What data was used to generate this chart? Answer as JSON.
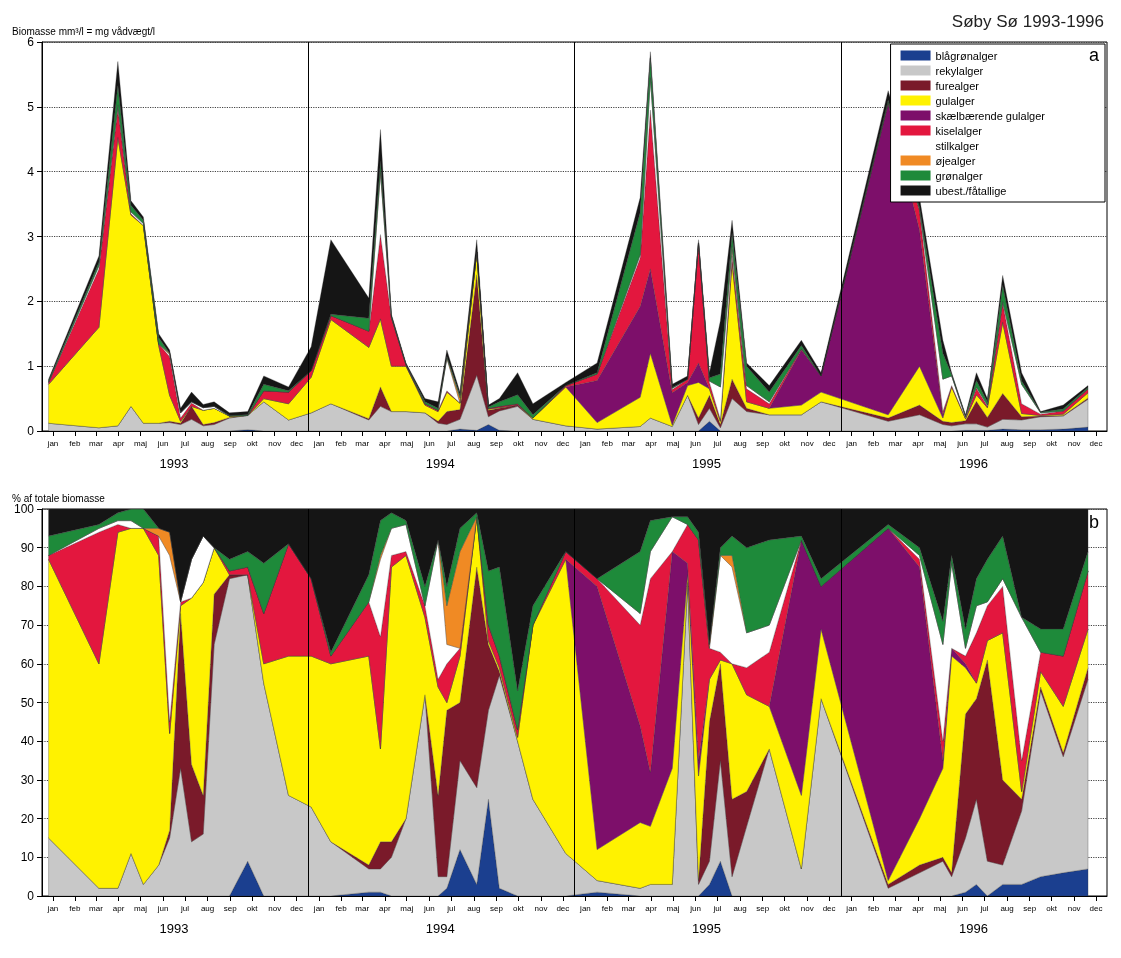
{
  "chart_data": [
    {
      "type": "area",
      "title": "Søby Sø 1993-1996",
      "ylabel": "Biomasse mm³/l = mg vådvægt/l",
      "annotations": [
        "a"
      ],
      "stacked": true,
      "legend": "top right",
      "grid": "y",
      "x": [
        "1993-01-10",
        "1993-03-20",
        "1993-04-15",
        "1993-05-03",
        "1993-05-20",
        "1993-06-10",
        "1993-06-25",
        "1993-07-10",
        "1993-07-25",
        "1993-08-10",
        "1993-08-25",
        "1993-09-15",
        "1993-10-10",
        "1993-11-01",
        "1993-12-05",
        "1994-01-05",
        "1994-02-01",
        "1994-03-25",
        "1994-04-10",
        "1994-04-25",
        "1994-05-15",
        "1994-06-10",
        "1994-06-28",
        "1994-07-10",
        "1994-07-28",
        "1994-08-20",
        "1994-09-05",
        "1994-09-20",
        "1994-10-15",
        "1994-11-05",
        "1994-12-20",
        "1995-02-01",
        "1995-04-01",
        "1995-04-15",
        "1995-05-15",
        "1995-06-05",
        "1995-06-20",
        "1995-07-05",
        "1995-07-20",
        "1995-08-05",
        "1995-08-25",
        "1995-09-25",
        "1995-11-08",
        "1995-12-05",
        "1996-03-06",
        "1996-04-18",
        "1996-05-20",
        "1996-06-01",
        "1996-06-20",
        "1996-07-05",
        "1996-07-20",
        "1996-08-10",
        "1996-09-05",
        "1996-10-01",
        "1996-11-01",
        "1996-12-05"
      ],
      "xlim": [
        "1993-01-01",
        "1996-12-31"
      ],
      "xticks": [
        {
          "value": "1993-01-16",
          "label": "jan"
        },
        {
          "value": "1993-02-15",
          "label": "feb"
        },
        {
          "value": "1993-03-16",
          "label": "mar"
        },
        {
          "value": "1993-04-16",
          "label": "apr"
        },
        {
          "value": "1993-05-16",
          "label": "maj"
        },
        {
          "value": "1993-06-16",
          "label": "jun"
        },
        {
          "value": "1993-07-16",
          "label": "jul"
        },
        {
          "value": "1993-08-16",
          "label": "aug"
        },
        {
          "value": "1993-09-16",
          "label": "sep"
        },
        {
          "value": "1993-10-16",
          "label": "okt"
        },
        {
          "value": "1993-11-16",
          "label": "nov"
        },
        {
          "value": "1993-12-16",
          "label": "dec"
        },
        {
          "value": "1994-01-16",
          "label": "jan"
        },
        {
          "value": "1994-02-15",
          "label": "feb"
        },
        {
          "value": "1994-03-16",
          "label": "mar"
        },
        {
          "value": "1994-04-16",
          "label": "apr"
        },
        {
          "value": "1994-05-16",
          "label": "maj"
        },
        {
          "value": "1994-06-16",
          "label": "jun"
        },
        {
          "value": "1994-07-16",
          "label": "jul"
        },
        {
          "value": "1994-08-16",
          "label": "aug"
        },
        {
          "value": "1994-09-16",
          "label": "sep"
        },
        {
          "value": "1994-10-16",
          "label": "okt"
        },
        {
          "value": "1994-11-16",
          "label": "nov"
        },
        {
          "value": "1994-12-16",
          "label": "dec"
        },
        {
          "value": "1995-01-16",
          "label": "jan"
        },
        {
          "value": "1995-02-15",
          "label": "feb"
        },
        {
          "value": "1995-03-16",
          "label": "mar"
        },
        {
          "value": "1995-04-16",
          "label": "apr"
        },
        {
          "value": "1995-05-16",
          "label": "maj"
        },
        {
          "value": "1995-06-16",
          "label": "jun"
        },
        {
          "value": "1995-07-16",
          "label": "jul"
        },
        {
          "value": "1995-08-16",
          "label": "aug"
        },
        {
          "value": "1995-09-16",
          "label": "sep"
        },
        {
          "value": "1995-10-16",
          "label": "okt"
        },
        {
          "value": "1995-11-16",
          "label": "nov"
        },
        {
          "value": "1995-12-16",
          "label": "dec"
        },
        {
          "value": "1996-01-16",
          "label": "jan"
        },
        {
          "value": "1996-02-15",
          "label": "feb"
        },
        {
          "value": "1996-03-16",
          "label": "mar"
        },
        {
          "value": "1996-04-16",
          "label": "apr"
        },
        {
          "value": "1996-05-16",
          "label": "maj"
        },
        {
          "value": "1996-06-16",
          "label": "jun"
        },
        {
          "value": "1996-07-16",
          "label": "jul"
        },
        {
          "value": "1996-08-16",
          "label": "aug"
        },
        {
          "value": "1996-09-16",
          "label": "sep"
        },
        {
          "value": "1996-10-16",
          "label": "okt"
        },
        {
          "value": "1996-11-16",
          "label": "nov"
        },
        {
          "value": "1996-12-16",
          "label": "dec"
        }
      ],
      "x2lim": [
        "1993-01-01",
        "1996-12-31"
      ],
      "x2ticks": [
        {
          "value": "1993-07-01",
          "label": "1993"
        },
        {
          "value": "1994-07-01",
          "label": "1994"
        },
        {
          "value": "1995-07-01",
          "label": "1995"
        },
        {
          "value": "1996-07-01",
          "label": "1996"
        }
      ],
      "ylim": [
        0,
        6
      ],
      "yticks": [
        0,
        1,
        2,
        3,
        4,
        5,
        6
      ],
      "ref_lines": [
        {
          "axis": "x",
          "value": "1994-01-01",
          "label": null
        },
        {
          "axis": "x",
          "value": "1995-01-01",
          "label": null
        },
        {
          "axis": "x",
          "value": "1996-01-01",
          "label": null
        }
      ],
      "series": [
        {
          "name": "blågrønalger",
          "color": "#1b3f8f",
          "values": [
            0,
            0,
            0,
            0,
            0,
            0,
            0,
            0,
            0,
            0,
            0,
            0,
            0.02,
            0,
            0,
            0,
            0,
            0,
            0,
            0,
            0,
            0,
            0,
            0,
            0.03,
            0.01,
            0.1,
            0.01,
            0,
            0,
            0,
            0,
            0,
            0,
            0,
            0,
            0,
            0.15,
            0,
            0,
            0,
            0,
            0,
            0,
            0,
            0,
            0,
            0,
            0.01,
            0.01,
            0.01,
            0.03,
            0.02,
            0.02,
            0.03,
            0.06
          ]
        },
        {
          "name": "rekylalger",
          "color": "#c8c8c8",
          "values": [
            0.12,
            0.05,
            0.08,
            0.38,
            0.12,
            0.12,
            0.13,
            0.1,
            0.18,
            0.08,
            0.1,
            0.2,
            0.22,
            0.45,
            0.17,
            0.28,
            0.42,
            0.17,
            0.38,
            0.3,
            0.3,
            0.28,
            0.12,
            0.1,
            0.15,
            0.85,
            0.12,
            0.3,
            0.38,
            0.18,
            0.08,
            0.03,
            0.07,
            0.2,
            0.07,
            0.55,
            0.1,
            0.2,
            0.05,
            0.5,
            0.3,
            0.25,
            0.25,
            0.45,
            0.15,
            0.25,
            0.1,
            0.08,
            0.1,
            0.1,
            0.05,
            0.15,
            0.15,
            0.2,
            0.2,
            0.43
          ]
        },
        {
          "name": "furealger",
          "color": "#7a1a2a",
          "values": [
            0,
            0,
            0,
            0,
            0,
            0,
            0.02,
            0.02,
            0.2,
            0.02,
            0.03,
            0.01,
            0,
            0,
            0,
            0,
            0,
            0.02,
            0.3,
            0,
            0,
            0,
            0.03,
            0.2,
            0.15,
            1.55,
            0.1,
            0.04,
            0.02,
            0,
            0,
            0,
            0,
            0,
            0,
            0,
            0.1,
            0.2,
            0.05,
            0.3,
            0.05,
            0,
            0,
            0,
            0.05,
            0.15,
            0.05,
            0.05,
            0.05,
            0.35,
            0.15,
            0.4,
            0.05,
            0.01,
            0.01,
            0.02
          ]
        },
        {
          "name": "gulalger",
          "color": "#fff200",
          "values": [
            0.6,
            1.55,
            4.45,
            2.95,
            3.05,
            1.2,
            0.4,
            0.03,
            0,
            0.22,
            0.22,
            0.02,
            0,
            0.05,
            0.25,
            0.55,
            1.3,
            1.1,
            1.05,
            0.7,
            0.7,
            0.12,
            0.15,
            0.3,
            0.1,
            0.35,
            0.02,
            0.01,
            0,
            0.02,
            0.6,
            0.1,
            0.45,
            1.0,
            0.02,
            0.15,
            0.55,
            0.1,
            0.05,
            1.8,
            0.1,
            0.1,
            0.15,
            0.15,
            0.05,
            0.6,
            0.05,
            0.55,
            0.03,
            0.1,
            0.15,
            1.1,
            0.05,
            0.01,
            0.02,
            0.08
          ]
        },
        {
          "name": "skælbærende gulalger",
          "color": "#7d0f6a",
          "values": [
            0,
            0,
            0,
            0,
            0,
            0,
            0,
            0,
            0,
            0,
            0,
            0,
            0,
            0,
            0,
            0,
            0,
            0,
            0,
            0,
            0,
            0,
            0,
            0,
            0,
            0,
            0,
            0,
            0,
            0,
            0,
            0.65,
            1.4,
            1.3,
            0.5,
            0.05,
            0.3,
            0,
            0,
            0,
            0,
            0,
            0.85,
            0.25,
            4.8,
            2.1,
            0.05,
            0,
            0,
            0,
            0,
            0,
            0,
            0,
            0,
            0
          ]
        },
        {
          "name": "kiselalger",
          "color": "#e3173e",
          "values": [
            0.03,
            0.9,
            0.45,
            0.02,
            0,
            0.02,
            0.6,
            0.05,
            0.05,
            0,
            0,
            0,
            0,
            0.12,
            0.18,
            0.1,
            0.06,
            0.25,
            1.3,
            0.75,
            0.02,
            0.02,
            0.02,
            0.02,
            0,
            0,
            0.01,
            0.02,
            0.02,
            0,
            0.02,
            0.1,
            0.75,
            2.45,
            0.05,
            0.05,
            1.85,
            0.1,
            0.03,
            0.1,
            0.2,
            0.07,
            0.02,
            0,
            0.02,
            0.3,
            0.05,
            0.02,
            0.01,
            0.1,
            0.02,
            0.3,
            0.15,
            0.02,
            0.05,
            0.06
          ]
        },
        {
          "name": "stilkalger",
          "color": "#ffffff",
          "values": [
            0,
            0.05,
            0.05,
            0.03,
            0.03,
            0,
            0.03,
            0.08,
            0.02,
            0.04,
            0.03,
            0,
            0,
            0,
            0,
            0,
            0,
            0,
            0.95,
            0,
            0,
            0,
            0,
            0.5,
            0,
            0,
            0,
            0,
            0,
            0,
            0,
            0,
            0.05,
            0.5,
            0.02,
            0,
            0,
            0.02,
            0.5,
            0.1,
            0.05,
            0.03,
            0,
            0,
            0,
            0.02,
            0.5,
            0.15,
            0.02,
            0.02,
            0.02,
            0.02,
            0.3,
            0.02,
            0,
            0
          ]
        },
        {
          "name": "øjealger",
          "color": "#f08a24",
          "values": [
            0,
            0,
            0,
            0,
            0,
            0,
            0.02,
            0,
            0,
            0,
            0,
            0,
            0,
            0,
            0,
            0,
            0,
            0,
            0.03,
            0,
            0,
            0,
            0,
            0.01,
            0.08,
            0,
            0,
            0,
            0,
            0,
            0,
            0,
            0,
            0,
            0,
            0,
            0,
            0,
            0,
            0.05,
            0,
            0,
            0,
            0,
            0,
            0,
            0,
            0,
            0,
            0,
            0,
            0,
            0,
            0,
            0,
            0
          ]
        },
        {
          "name": "grønalger",
          "color": "#1e8a3a",
          "values": [
            0.02,
            0.05,
            0.3,
            0.1,
            0.05,
            0.1,
            0,
            0,
            0,
            0,
            0,
            0.01,
            0.01,
            0.1,
            0.02,
            0,
            0.02,
            0.2,
            0.15,
            0.02,
            0.01,
            0.03,
            0.03,
            0.02,
            0.04,
            0,
            0.02,
            0.07,
            0.14,
            0.05,
            0,
            0.02,
            0.65,
            0.3,
            0.01,
            0,
            0,
            0.05,
            0.2,
            0.2,
            0.3,
            0.15,
            0.05,
            0,
            0.03,
            0.03,
            0.4,
            0.02,
            0.01,
            0.1,
            0.05,
            0.25,
            0.05,
            0.01,
            0.03,
            0.02
          ]
        },
        {
          "name": "ubest./fåtallige",
          "color": "#151515",
          "values": [
            0.03,
            0.1,
            0.37,
            0.07,
            0.05,
            0.06,
            0.05,
            0.07,
            0.15,
            0.05,
            0.07,
            0.04,
            0.05,
            0.13,
            0.06,
            0.37,
            1.15,
            0.31,
            0.49,
            0.03,
            0.02,
            0.05,
            0.1,
            0.1,
            0.05,
            0.19,
            0.03,
            0.05,
            0.34,
            0.17,
            0.05,
            0.15,
            0.23,
            0.1,
            0.05,
            0.05,
            0.05,
            0.08,
            0.82,
            0.2,
            0.05,
            0.1,
            0.08,
            0.05,
            0.15,
            0.15,
            0.2,
            0.03,
            0.02,
            0.12,
            0.05,
            0.15,
            0.13,
            0.01,
            0.06,
            0.03
          ]
        }
      ]
    },
    {
      "type": "area",
      "ylabel": "% af totale biomasse",
      "annotations": [
        "b"
      ],
      "stacked": true,
      "grid": "y",
      "x": [
        "1993-01-10",
        "1993-03-20",
        "1993-04-15",
        "1993-05-03",
        "1993-05-20",
        "1993-06-10",
        "1993-06-25",
        "1993-07-10",
        "1993-07-25",
        "1993-08-10",
        "1993-08-25",
        "1993-09-15",
        "1993-10-10",
        "1993-11-01",
        "1993-12-05",
        "1994-01-05",
        "1994-02-01",
        "1994-03-25",
        "1994-04-10",
        "1994-04-25",
        "1994-05-15",
        "1994-06-10",
        "1994-06-28",
        "1994-07-10",
        "1994-07-28",
        "1994-08-20",
        "1994-09-05",
        "1994-09-20",
        "1994-10-15",
        "1994-11-05",
        "1994-12-20",
        "1995-02-01",
        "1995-04-01",
        "1995-04-15",
        "1995-05-15",
        "1995-06-05",
        "1995-06-20",
        "1995-07-05",
        "1995-07-20",
        "1995-08-05",
        "1995-08-25",
        "1995-09-25",
        "1995-11-08",
        "1995-12-05",
        "1996-03-06",
        "1996-04-18",
        "1996-05-20",
        "1996-06-01",
        "1996-06-20",
        "1996-07-05",
        "1996-07-20",
        "1996-08-10",
        "1996-09-05",
        "1996-10-01",
        "1996-11-01",
        "1996-12-05"
      ],
      "xlim": [
        "1993-01-01",
        "1996-12-31"
      ],
      "xticks": [
        {
          "value": "1993-01-16",
          "label": "jan"
        },
        {
          "value": "1993-02-15",
          "label": "feb"
        },
        {
          "value": "1993-03-16",
          "label": "mar"
        },
        {
          "value": "1993-04-16",
          "label": "apr"
        },
        {
          "value": "1993-05-16",
          "label": "maj"
        },
        {
          "value": "1993-06-16",
          "label": "jun"
        },
        {
          "value": "1993-07-16",
          "label": "jul"
        },
        {
          "value": "1993-08-16",
          "label": "aug"
        },
        {
          "value": "1993-09-16",
          "label": "sep"
        },
        {
          "value": "1993-10-16",
          "label": "okt"
        },
        {
          "value": "1993-11-16",
          "label": "nov"
        },
        {
          "value": "1993-12-16",
          "label": "dec"
        },
        {
          "value": "1994-01-16",
          "label": "jan"
        },
        {
          "value": "1994-02-15",
          "label": "feb"
        },
        {
          "value": "1994-03-16",
          "label": "mar"
        },
        {
          "value": "1994-04-16",
          "label": "apr"
        },
        {
          "value": "1994-05-16",
          "label": "maj"
        },
        {
          "value": "1994-06-16",
          "label": "jun"
        },
        {
          "value": "1994-07-16",
          "label": "jul"
        },
        {
          "value": "1994-08-16",
          "label": "aug"
        },
        {
          "value": "1994-09-16",
          "label": "sep"
        },
        {
          "value": "1994-10-16",
          "label": "okt"
        },
        {
          "value": "1994-11-16",
          "label": "nov"
        },
        {
          "value": "1994-12-16",
          "label": "dec"
        },
        {
          "value": "1995-01-16",
          "label": "jan"
        },
        {
          "value": "1995-02-15",
          "label": "feb"
        },
        {
          "value": "1995-03-16",
          "label": "mar"
        },
        {
          "value": "1995-04-16",
          "label": "apr"
        },
        {
          "value": "1995-05-16",
          "label": "maj"
        },
        {
          "value": "1995-06-16",
          "label": "jun"
        },
        {
          "value": "1995-07-16",
          "label": "jul"
        },
        {
          "value": "1995-08-16",
          "label": "aug"
        },
        {
          "value": "1995-09-16",
          "label": "sep"
        },
        {
          "value": "1995-10-16",
          "label": "okt"
        },
        {
          "value": "1995-11-16",
          "label": "nov"
        },
        {
          "value": "1995-12-16",
          "label": "dec"
        },
        {
          "value": "1996-01-16",
          "label": "jan"
        },
        {
          "value": "1996-02-15",
          "label": "feb"
        },
        {
          "value": "1996-03-16",
          "label": "mar"
        },
        {
          "value": "1996-04-16",
          "label": "apr"
        },
        {
          "value": "1996-05-16",
          "label": "maj"
        },
        {
          "value": "1996-06-16",
          "label": "jun"
        },
        {
          "value": "1996-07-16",
          "label": "jul"
        },
        {
          "value": "1996-08-16",
          "label": "aug"
        },
        {
          "value": "1996-09-16",
          "label": "sep"
        },
        {
          "value": "1996-10-16",
          "label": "okt"
        },
        {
          "value": "1996-11-16",
          "label": "nov"
        },
        {
          "value": "1996-12-16",
          "label": "dec"
        }
      ],
      "x2lim": [
        "1993-01-01",
        "1996-12-31"
      ],
      "x2ticks": [
        {
          "value": "1993-07-01",
          "label": "1993"
        },
        {
          "value": "1994-07-01",
          "label": "1994"
        },
        {
          "value": "1995-07-01",
          "label": "1995"
        },
        {
          "value": "1996-07-01",
          "label": "1996"
        }
      ],
      "ylim": [
        0,
        100
      ],
      "yticks": [
        0,
        10,
        20,
        30,
        40,
        50,
        60,
        70,
        80,
        90,
        100
      ],
      "ref_lines": [
        {
          "axis": "x",
          "value": "1994-01-01",
          "label": null
        },
        {
          "axis": "x",
          "value": "1995-01-01",
          "label": null
        },
        {
          "axis": "x",
          "value": "1996-01-01",
          "label": null
        }
      ],
      "series": [
        {
          "color": "#1b3f8f",
          "values": [
            0,
            0,
            0,
            0,
            0,
            0,
            0,
            0,
            0,
            0,
            0,
            0,
            9,
            0,
            0,
            0,
            0,
            1,
            1,
            0,
            0,
            0,
            0,
            2,
            12,
            3,
            25,
            2,
            0,
            0,
            0,
            1,
            0,
            0,
            0,
            0,
            0,
            3,
            9,
            0,
            0,
            0,
            0,
            0,
            0,
            0,
            0,
            0,
            1,
            3,
            0,
            3,
            3,
            5,
            6,
            7
          ]
        },
        {
          "color": "#c8c8c8",
          "values": [
            15,
            2,
            2,
            11,
            3,
            8,
            15,
            33,
            14,
            16,
            65,
            82,
            74,
            55,
            26,
            23,
            14,
            6,
            6,
            10,
            20,
            52,
            5,
            3,
            23,
            25,
            23,
            55,
            40,
            25,
            11,
            3,
            2,
            3,
            3,
            81,
            3,
            6,
            26,
            5,
            18,
            38,
            7,
            51,
            2,
            6,
            9,
            5,
            14,
            22,
            9,
            5,
            19,
            48,
            30,
            49
          ]
        },
        {
          "color": "#7a1a2a",
          "values": [
            0,
            0,
            0,
            0,
            0,
            0,
            2,
            40,
            20,
            10,
            13,
            1,
            0,
            0,
            0,
            0,
            0,
            1,
            7,
            4,
            0,
            0,
            21,
            43,
            15,
            57,
            17,
            1,
            0,
            0,
            0,
            0,
            0,
            0,
            0,
            0,
            1,
            36,
            25,
            20,
            9,
            0,
            0,
            0,
            1,
            2,
            1,
            1,
            32,
            26,
            52,
            22,
            3,
            1,
            1,
            3
          ]
        },
        {
          "color": "#fff200",
          "values": [
            72,
            58,
            92,
            84,
            92,
            80,
            25,
            2,
            43,
            55,
            12,
            0,
            0,
            5,
            36,
            39,
            46,
            54,
            24,
            71,
            68,
            20,
            28,
            2,
            12,
            13,
            1,
            1,
            1,
            45,
            76,
            8,
            17,
            15,
            30,
            2,
            27,
            11,
            1,
            35,
            25,
            11,
            19,
            18,
            1,
            12,
            23,
            56,
            12,
            4,
            5,
            38,
            2,
            4,
            12,
            10
          ]
        },
        {
          "color": "#7d0f6a",
          "values": [
            0,
            0,
            0,
            0,
            0,
            0,
            0,
            0,
            0,
            0,
            0,
            0,
            0,
            0,
            0,
            0,
            0,
            0,
            0,
            0,
            0,
            0,
            0,
            0,
            0,
            0,
            0,
            0,
            0,
            0,
            0,
            68,
            25,
            14,
            56,
            3,
            4,
            0,
            0,
            0,
            0,
            0,
            66,
            11,
            91,
            65,
            2,
            2,
            1,
            0,
            0,
            0,
            0,
            0,
            0,
            0
          ]
        },
        {
          "color": "#e3173e",
          "values": [
            1,
            34,
            2,
            0,
            0,
            5,
            3,
            1,
            0,
            0,
            0,
            1,
            2,
            13,
            29,
            20,
            2,
            14,
            29,
            3,
            1,
            3,
            2,
            10,
            2,
            0,
            4,
            3,
            2,
            0,
            2,
            2,
            26,
            50,
            0,
            10,
            57,
            8,
            2,
            0,
            7,
            14,
            0,
            0,
            0,
            2,
            5,
            0,
            2,
            13,
            9,
            12,
            8,
            5,
            13,
            15
          ]
        },
        {
          "color": "#ffffff",
          "values": [
            0,
            1,
            1,
            2,
            0,
            0,
            43,
            0,
            10,
            12,
            0,
            0,
            0,
            0,
            0,
            0,
            0,
            0,
            20,
            7,
            7,
            0,
            36,
            5,
            0,
            0,
            0,
            0,
            0,
            0,
            0,
            0,
            3,
            7,
            9,
            0,
            0,
            0,
            25,
            25,
            9,
            7,
            0,
            0,
            0,
            1,
            25,
            22,
            2,
            7,
            1,
            2,
            37,
            0,
            0,
            0
          ]
        },
        {
          "color": "#f08a24",
          "values": [
            0,
            0,
            0,
            0,
            0,
            2,
            6,
            0,
            0,
            0,
            0,
            0,
            0,
            0,
            0,
            0,
            0,
            0,
            1,
            0,
            0,
            0,
            0,
            10,
            25,
            0,
            0,
            0,
            0,
            0,
            0,
            0,
            0,
            0,
            0,
            0,
            0,
            1,
            0,
            3,
            0,
            0,
            0,
            0,
            0,
            0,
            0,
            0,
            0,
            0,
            0,
            0,
            0,
            0,
            0,
            0
          ]
        },
        {
          "color": "#1e8a3a",
          "values": [
            5,
            1,
            2,
            3,
            5,
            0,
            0,
            0,
            0,
            0,
            0,
            3,
            4,
            13,
            0,
            0,
            1,
            7,
            9,
            4,
            1,
            5,
            0,
            5,
            6,
            1,
            14,
            23,
            10,
            5,
            0,
            0,
            16,
            8,
            0,
            2,
            2,
            0,
            2,
            5,
            22,
            22,
            1,
            2,
            1,
            2,
            6,
            2,
            5,
            7,
            11,
            11,
            0,
            6,
            7,
            5
          ]
        },
        {
          "color": "#151515",
          "values": [
            7,
            4,
            1,
            0,
            0,
            5,
            6,
            24,
            13,
            7,
            10,
            13,
            11,
            14,
            9,
            18,
            37,
            17,
            3,
            1,
            3,
            20,
            8,
            20,
            5,
            1,
            16,
            15,
            47,
            25,
            11,
            18,
            11,
            3,
            2,
            2,
            6,
            35,
            10,
            7,
            10,
            8,
            7,
            18,
            4,
            10,
            29,
            12,
            31,
            18,
            13,
            7,
            28,
            31,
            31,
            11
          ]
        }
      ]
    }
  ]
}
